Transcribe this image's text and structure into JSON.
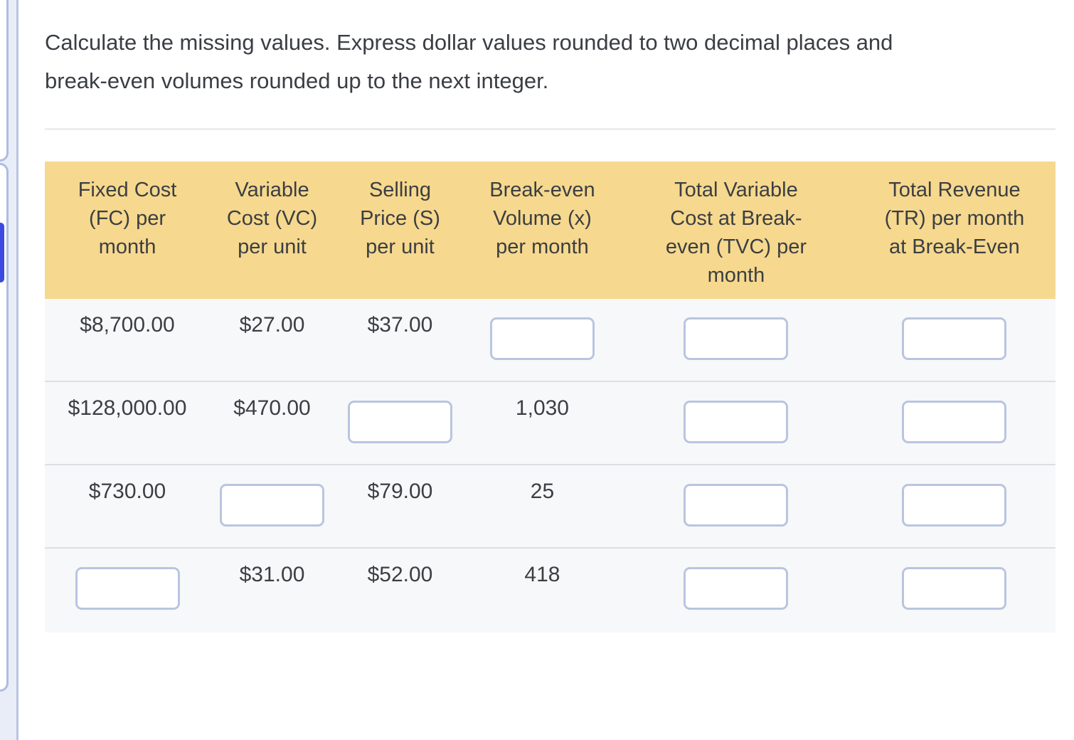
{
  "instructions": "Calculate the missing values. Express dollar values rounded to two decimal places and\nbreak-even volumes rounded up to the next integer.",
  "table": {
    "header": {
      "fixed_cost": "Fixed Cost\n(FC) per\nmonth",
      "variable_cost": "Variable\nCost (VC)\nper unit",
      "selling_price": "Selling\nPrice (S)\nper unit",
      "break_even_volume": "Break-even\nVolume (x)\nper month",
      "total_variable_cost": "Total Variable\nCost at Break-\neven (TVC) per\nmonth",
      "total_revenue": "Total Revenue\n(TR) per month\nat Break-Even"
    },
    "rows": [
      {
        "fixed_cost": "$8,700.00",
        "variable_cost": "$27.00",
        "selling_price": "$37.00"
      },
      {
        "fixed_cost": "$128,000.00",
        "variable_cost": "$470.00",
        "break_even_volume": "1,030"
      },
      {
        "fixed_cost": "$730.00",
        "selling_price": "$79.00",
        "break_even_volume": "25"
      },
      {
        "variable_cost": "$31.00",
        "selling_price": "$52.00",
        "break_even_volume": "418"
      }
    ],
    "inputs": {
      "value": "",
      "count": 12
    }
  },
  "colors": {
    "header_bg": "#f6d88e",
    "row_bg": "#f7f8f9",
    "row_divider": "#dddee1",
    "input_border": "#b9c5e0",
    "sidebar_bg": "#e9edf8",
    "sidebar_border": "#b9c5df",
    "current_question_accent": "#3b4be2",
    "text": "#3b3f42"
  }
}
